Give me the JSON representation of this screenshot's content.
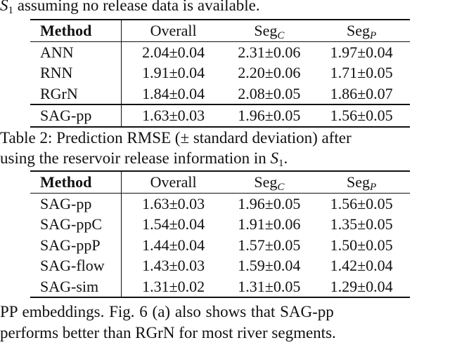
{
  "text_top": {
    "sym": "S",
    "sub": "1",
    "rest": " assuming no release data is available."
  },
  "table1": {
    "headers": {
      "method": "Method",
      "overall": "Overall",
      "segc_base": "Seg",
      "segc_sub": "C",
      "segp_base": "Seg",
      "segp_sub": "P"
    },
    "rows": [
      {
        "method": "ANN",
        "overall": "2.04±0.04",
        "segc": "2.31±0.06",
        "segp": "1.97±0.04"
      },
      {
        "method": "RNN",
        "overall": "1.91±0.04",
        "segc": "2.20±0.06",
        "segp": "1.71±0.05"
      },
      {
        "method": "RGrN",
        "overall": "1.84±0.04",
        "segc": "2.08±0.05",
        "segp": "1.86±0.07"
      },
      {
        "method": "SAG-pp",
        "overall": "1.63±0.03",
        "segc": "1.96±0.05",
        "segp": "1.56±0.05"
      }
    ]
  },
  "caption2": {
    "line1": "Table 2: Prediction RMSE (± standard deviation) after",
    "line2_pre": "using the reservoir release information in ",
    "line2_sym": "S",
    "line2_sub": "1",
    "line2_post": "."
  },
  "table2": {
    "headers": {
      "method": "Method",
      "overall": "Overall",
      "segc_base": "Seg",
      "segc_sub": "C",
      "segp_base": "Seg",
      "segp_sub": "P"
    },
    "rows": [
      {
        "method": "SAG-pp",
        "overall": "1.63±0.03",
        "segc": "1.96±0.05",
        "segp": "1.56±0.05"
      },
      {
        "method": "SAG-ppC",
        "overall": "1.54±0.04",
        "segc": "1.91±0.06",
        "segp": "1.35±0.05"
      },
      {
        "method": "SAG-ppP",
        "overall": "1.44±0.04",
        "segc": "1.57±0.05",
        "segp": "1.50±0.05"
      },
      {
        "method": "SAG-flow",
        "overall": "1.43±0.03",
        "segc": "1.59±0.04",
        "segp": "1.42±0.04"
      },
      {
        "method": "SAG-sim",
        "overall": "1.31±0.02",
        "segc": "1.31±0.05",
        "segp": "1.29±0.04"
      }
    ]
  },
  "paragraph": {
    "line1": "PP embeddings.  Fig. 6 (a) also shows that SAG-pp",
    "line2": "performs better than RGrN for most river segments."
  }
}
